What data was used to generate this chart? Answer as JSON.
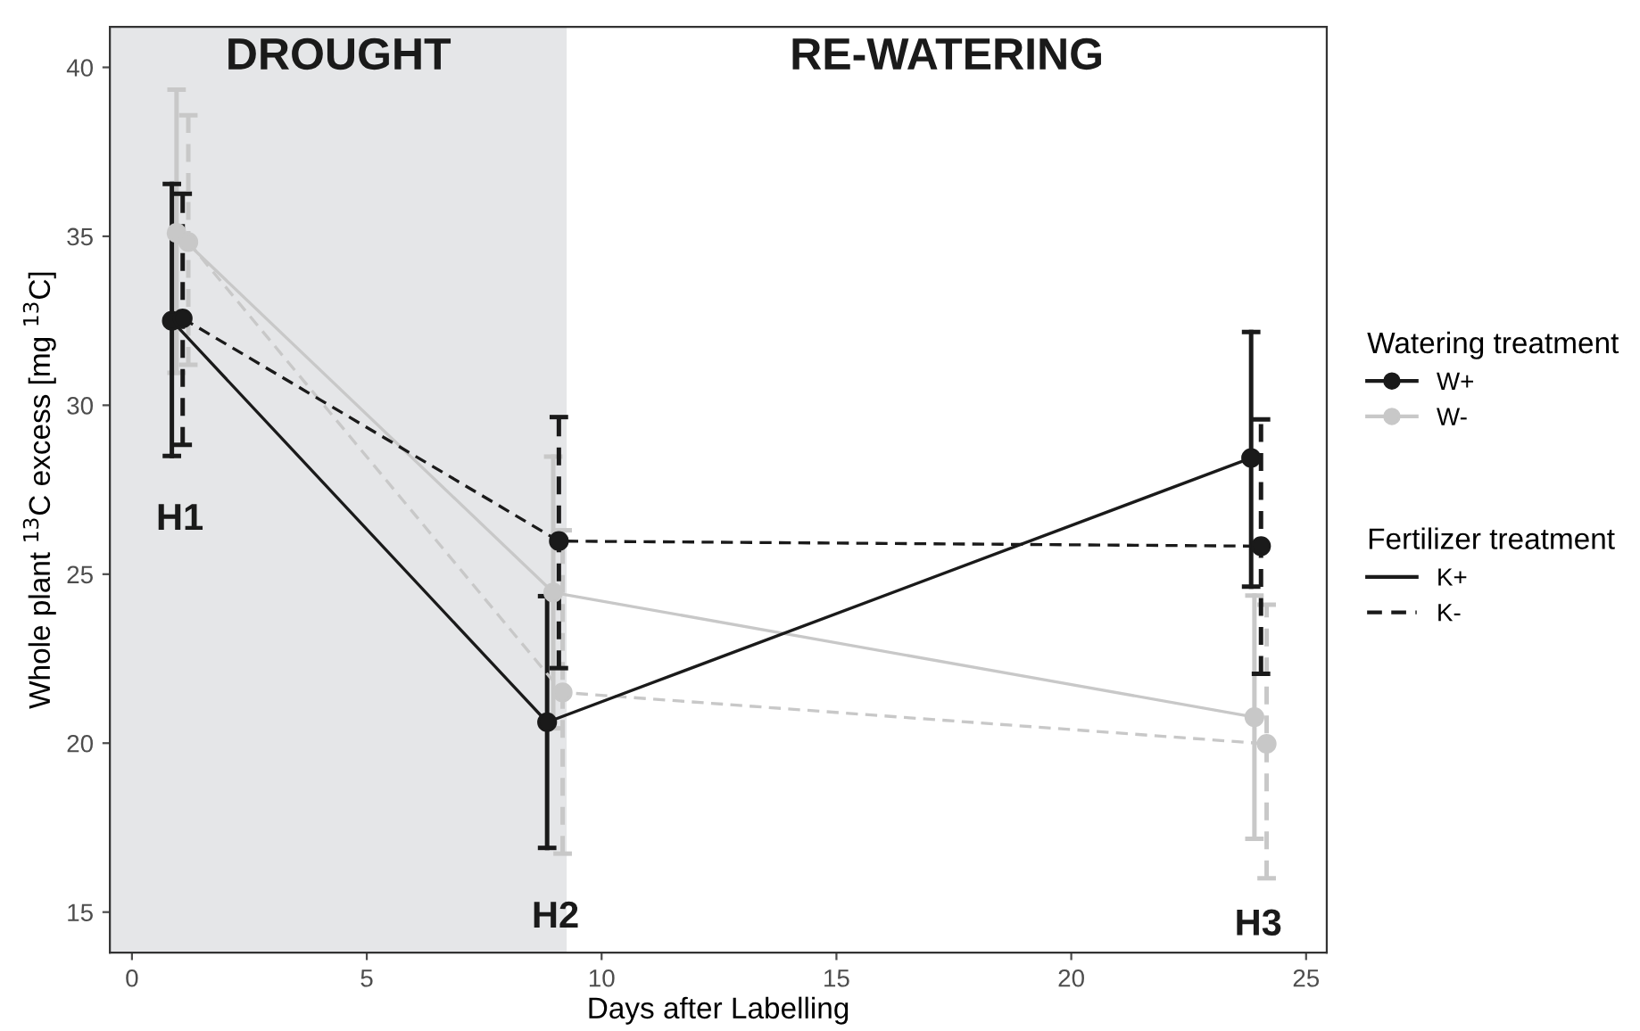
{
  "chart_data": {
    "type": "line",
    "xlabel": "Days after Labelling",
    "ylabel": "Whole plant $^{13}$C excess [mg $^{13}$C]",
    "xlim": [
      -0.47,
      25.44
    ],
    "ylim": [
      13.8,
      41.2
    ],
    "xticks": [
      0,
      5,
      10,
      15,
      20,
      25
    ],
    "yticks": [
      15,
      20,
      25,
      30,
      35,
      40
    ],
    "grid": false,
    "marker": "circle",
    "legend": "right",
    "legend_title": [
      "Watering treatment",
      "Fertilizer treatment"
    ],
    "bands": [
      {
        "axis": "x",
        "from": -0.47,
        "to": 9.26,
        "label": "DROUGHT",
        "color": "#e5e6e8"
      },
      {
        "axis": "x",
        "from": 9.26,
        "to": 25.44,
        "label": "RE-WATERING",
        "color": "#ffffff"
      }
    ],
    "annotations": [
      "H1",
      "H2",
      "H3"
    ],
    "series": [
      {
        "color": "#c8c8c8",
        "line_style": "solid",
        "x": [
          0.95,
          8.97,
          23.9
        ],
        "values": [
          35.1,
          24.46,
          20.77
        ],
        "errors": [
          [
            30.96,
            39.34
          ],
          [
            20.44,
            28.48
          ],
          [
            17.17,
            24.37
          ]
        ]
      },
      {
        "color": "#c8c8c8",
        "line_style": "dashed",
        "x": [
          1.2,
          9.17,
          24.16
        ],
        "values": [
          34.83,
          21.5,
          19.98
        ],
        "errors": [
          [
            31.2,
            38.58
          ],
          [
            16.73,
            26.3
          ],
          [
            16.0,
            24.1
          ]
        ]
      },
      {
        "color": "#1a1a1a",
        "line_style": "solid",
        "x": [
          0.85,
          8.84,
          23.83
        ],
        "values": [
          32.5,
          20.62,
          28.44
        ],
        "errors": [
          [
            28.5,
            36.55
          ],
          [
            16.9,
            24.35
          ],
          [
            24.63,
            32.17
          ]
        ]
      },
      {
        "color": "#1a1a1a",
        "line_style": "dashed",
        "x": [
          1.08,
          9.09,
          24.04
        ],
        "values": [
          32.57,
          25.98,
          25.83
        ],
        "errors": [
          [
            28.83,
            36.26
          ],
          [
            22.22,
            29.65
          ],
          [
            22.05,
            29.58
          ]
        ]
      },
      {
        "name": "W+",
        "color": "#1a1a1a",
        "line_style": "solid",
        "marker": "circle"
      },
      {
        "name": "W-",
        "color": "#c8c8c8",
        "line_style": "solid",
        "marker": "circle"
      },
      {
        "name": "K+",
        "color": "#1a1a1a",
        "line_style": "solid",
        "marker": "none"
      },
      {
        "name": "K-",
        "color": "#1a1a1a",
        "line_style": "dashed",
        "marker": "none"
      }
    ]
  }
}
